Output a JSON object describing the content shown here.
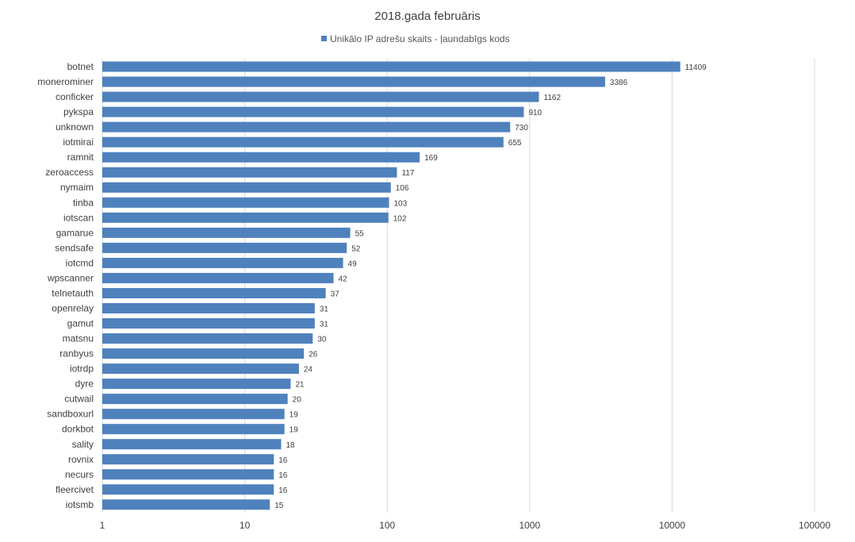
{
  "chart_data": {
    "type": "bar",
    "orientation": "horizontal",
    "title": "2018.gada februāris",
    "legend": {
      "position": "top",
      "entries": [
        "Unikālo IP adrešu skaits -  ļaundabīgs kods"
      ]
    },
    "xscale": "log",
    "xlim": [
      1,
      100000
    ],
    "x_ticks": [
      1,
      10,
      100,
      1000,
      10000,
      100000
    ],
    "x_tick_labels": [
      "1",
      "10",
      "100",
      "1000",
      "10000",
      "100000"
    ],
    "grid": true,
    "bar_color": "#4f81bd",
    "categories": [
      "botnet",
      "monerominer",
      "conficker",
      "pykspa",
      "unknown",
      "iotmirai",
      "ramnit",
      "zeroaccess",
      "nymaim",
      "tinba",
      "iotscan",
      "gamarue",
      "sendsafe",
      "iotcmd",
      "wpscanner",
      "telnetauth",
      "openrelay",
      "gamut",
      "matsnu",
      "ranbyus",
      "iotrdp",
      "dyre",
      "cutwail",
      "sandboxurl",
      "dorkbot",
      "sality",
      "rovnix",
      "necurs",
      "fleercivet",
      "iotsmb"
    ],
    "series": [
      {
        "name": "Unikālo IP adrešu skaits -  ļaundabīgs kods",
        "values": [
          11409,
          3386,
          1162,
          910,
          730,
          655,
          169,
          117,
          106,
          103,
          102,
          55,
          52,
          49,
          42,
          37,
          31,
          31,
          30,
          26,
          24,
          21,
          20,
          19,
          19,
          18,
          16,
          16,
          16,
          15
        ]
      }
    ]
  }
}
